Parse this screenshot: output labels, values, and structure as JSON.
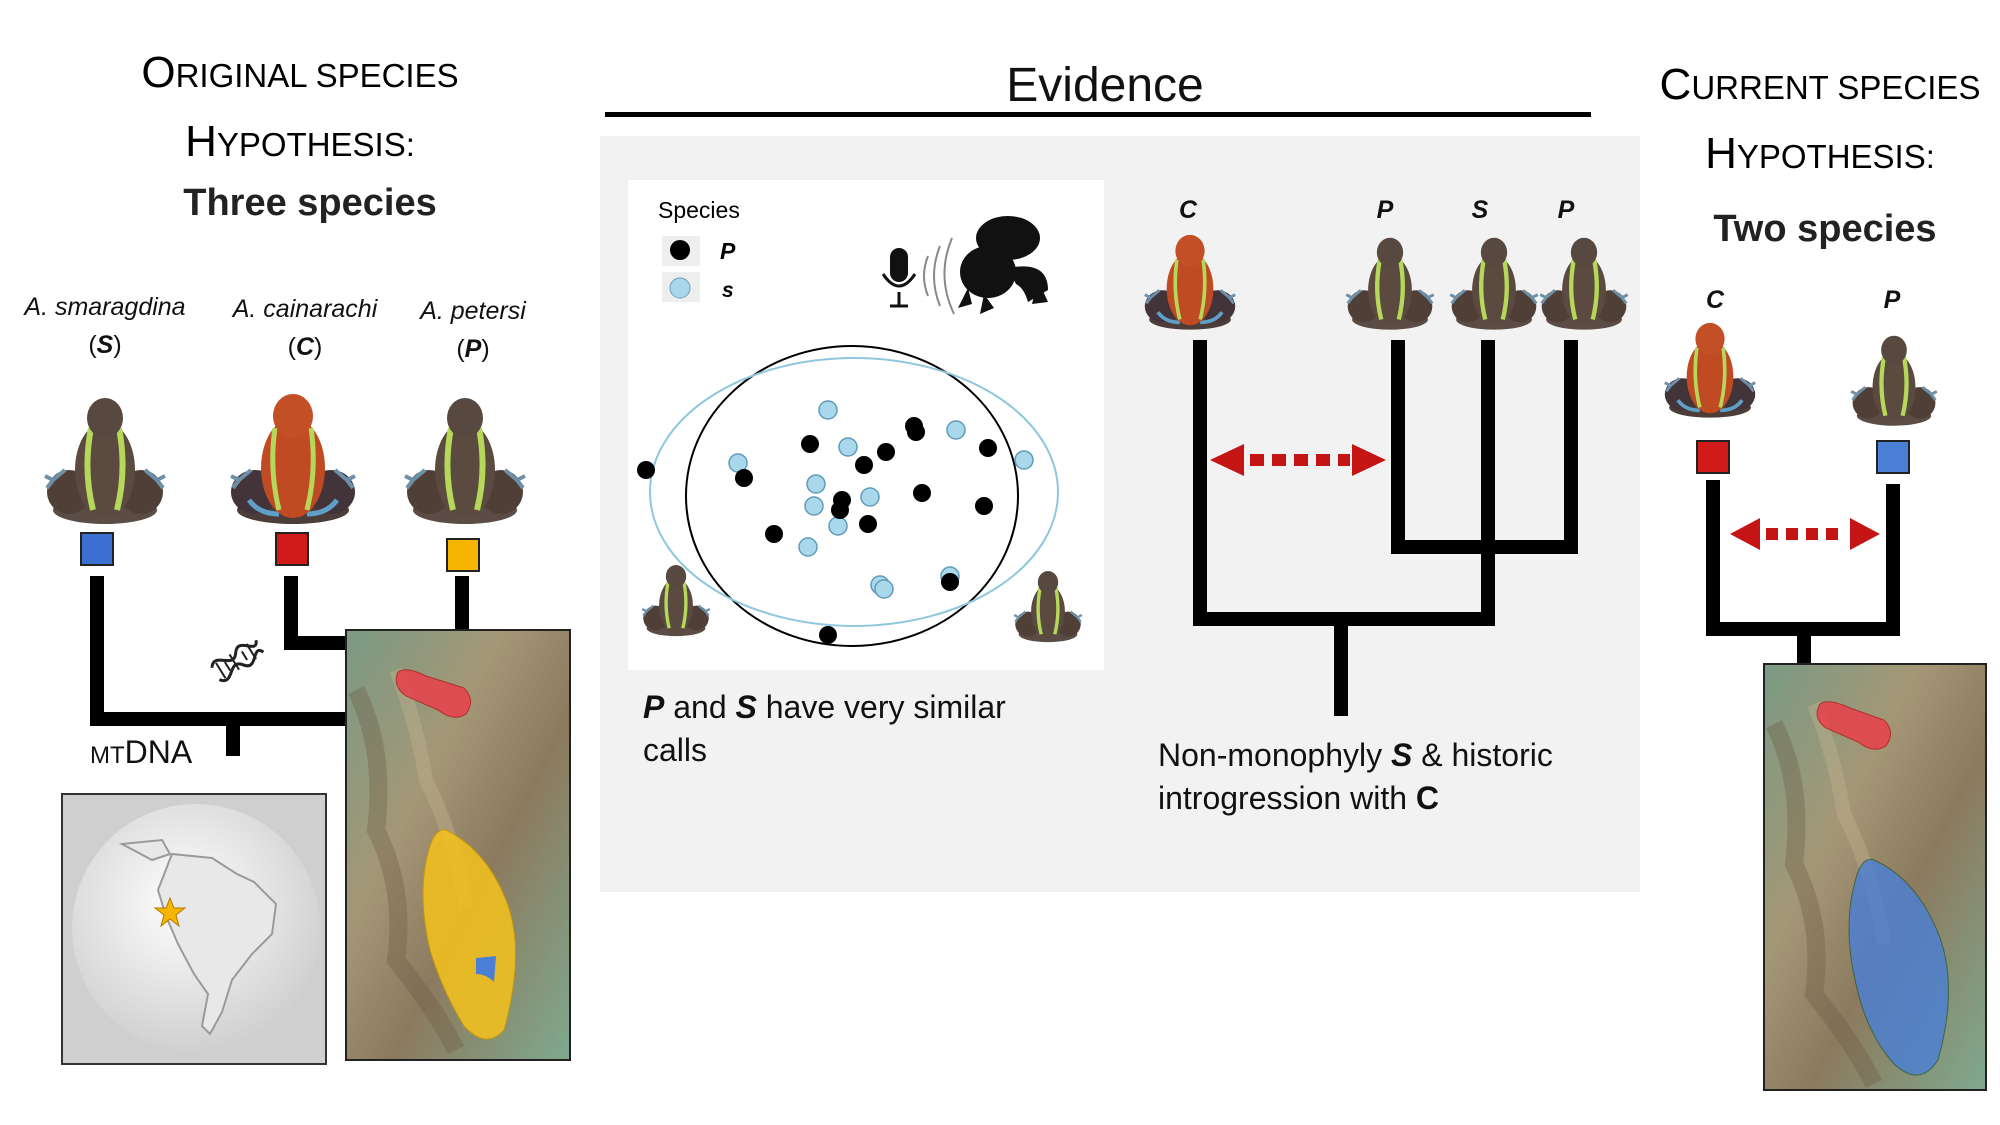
{
  "left": {
    "title_line1_cap": "O",
    "title_line1_rest": "RIGINAL SPECIES",
    "title_line2_cap": "H",
    "title_line2_rest": "YPOTHESIS:",
    "subtitle": "Three species",
    "species": [
      {
        "name": "A. smaragdina",
        "abbr": "S",
        "color": "#3b6fd0"
      },
      {
        "name": "A. cainarachi",
        "abbr": "C",
        "color": "#d11a1a"
      },
      {
        "name": "A. petersi",
        "abbr": "P",
        "color": "#f6b500"
      }
    ],
    "mtdna_prefix": "MT",
    "mtdna_suffix": "DNA"
  },
  "middle": {
    "title": "Evidence",
    "legend_title": "Species",
    "legend_items": [
      {
        "label": "P",
        "color": "#000000"
      },
      {
        "label": "s",
        "color": "#a9d8ec"
      }
    ],
    "call_text_p": "P",
    "call_text_and": " and ",
    "call_text_s": "S",
    "call_text_rest": " have very similar calls",
    "tree_labels": [
      "C",
      "P",
      "S",
      "P"
    ],
    "tree_text_1": "Non-monophyly ",
    "tree_text_s": "S",
    "tree_text_2": " & historic introgression with ",
    "tree_text_c": "C"
  },
  "right": {
    "title_line1_cap": "C",
    "title_line1_rest": "URRENT SPECIES",
    "title_line2_cap": "H",
    "title_line2_rest": "YPOTHESIS:",
    "subtitle": "Two species",
    "labels": [
      "C",
      "P"
    ],
    "colors": {
      "c": "#d11a1a",
      "p": "#4a7fd6"
    }
  },
  "colors": {
    "panel_bg": "#f2f2f2",
    "arrow": "#c41414",
    "blue_point": "#a9d8ec",
    "range_red": "#e8404a",
    "range_yellow": "#f6c21c",
    "range_blue": "#4a7fd6"
  }
}
